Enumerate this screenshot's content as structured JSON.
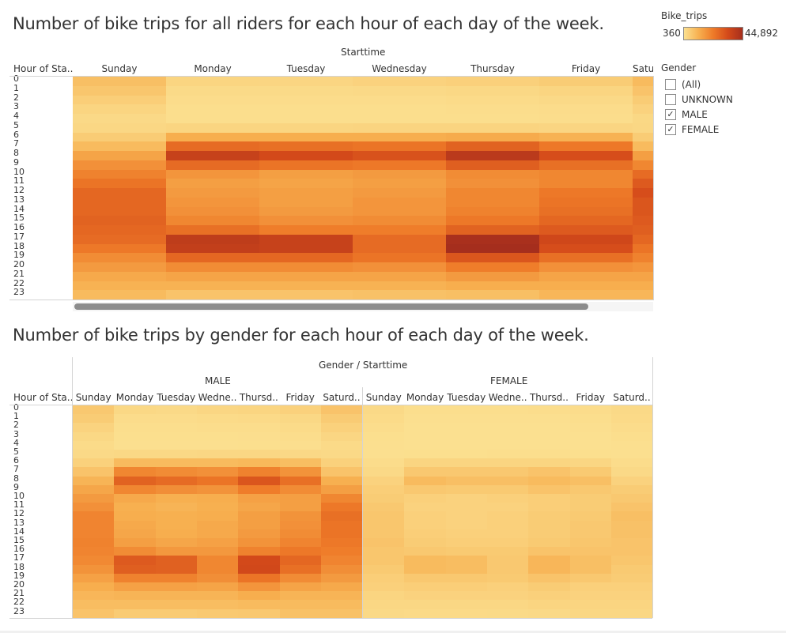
{
  "chart1": {
    "title": "Number of bike trips for all riders for each hour of each day of the week.",
    "column_header": "Starttime",
    "row_header": "Hour of Sta..",
    "day_labels": [
      "Sunday",
      "Monday",
      "Tuesday",
      "Wednesday",
      "Thursday",
      "Friday",
      "Satu"
    ]
  },
  "chart2": {
    "title": "Number of bike trips by gender for each hour of each day of the week.",
    "column_header": "Gender / Starttime",
    "row_header": "Hour of Sta..",
    "gender_labels": [
      "MALE",
      "FEMALE"
    ],
    "day_labels": [
      "Sunday",
      "Monday",
      "Tuesday",
      "Wedne..",
      "Thursd..",
      "Friday",
      "Saturd.."
    ]
  },
  "legend": {
    "title": "Bike_trips",
    "min_label": "360",
    "max_label": "44,892"
  },
  "filter": {
    "title": "Gender",
    "options": [
      {
        "label": "(All)",
        "checked": false
      },
      {
        "label": "UNKNOWN",
        "checked": false
      },
      {
        "label": "MALE",
        "checked": true
      },
      {
        "label": "FEMALE",
        "checked": true
      }
    ]
  },
  "hours": [
    "0",
    "1",
    "2",
    "3",
    "4",
    "5",
    "6",
    "7",
    "8",
    "9",
    "10",
    "11",
    "12",
    "13",
    "14",
    "15",
    "16",
    "17",
    "18",
    "19",
    "20",
    "21",
    "22",
    "23"
  ],
  "colors": {
    "scale_low": "#fbe090",
    "scale_mid": "#ee7a28",
    "scale_high": "#a52e1d"
  },
  "chart_data": [
    {
      "type": "heatmap",
      "title": "Number of bike trips for all riders for each hour of each day of the week.",
      "xlabel": "Starttime",
      "ylabel": "Hour of Sta..",
      "x": [
        "Sunday",
        "Monday",
        "Tuesday",
        "Wednesday",
        "Thursday",
        "Friday",
        "Saturday"
      ],
      "y": [
        "0",
        "1",
        "2",
        "3",
        "4",
        "5",
        "6",
        "7",
        "8",
        "9",
        "10",
        "11",
        "12",
        "13",
        "14",
        "15",
        "16",
        "17",
        "18",
        "19",
        "20",
        "21",
        "22",
        "23"
      ],
      "color_range": [
        360,
        44892
      ],
      "values": [
        [
          8000,
          3000,
          2800,
          3500,
          4000,
          5000,
          9000
        ],
        [
          6500,
          1800,
          1800,
          2000,
          2300,
          3000,
          7000
        ],
        [
          4500,
          1200,
          1200,
          1300,
          1500,
          2000,
          5000
        ],
        [
          3000,
          900,
          900,
          900,
          1000,
          1300,
          3500
        ],
        [
          2000,
          800,
          800,
          800,
          900,
          1000,
          2200
        ],
        [
          2500,
          3000,
          3000,
          3200,
          3200,
          2800,
          2500
        ],
        [
          5000,
          12000,
          12000,
          12000,
          12500,
          11000,
          5000
        ],
        [
          9000,
          26000,
          25000,
          24000,
          28000,
          23000,
          9000
        ],
        [
          14000,
          37000,
          34000,
          32000,
          40000,
          33000,
          15000
        ],
        [
          18000,
          26000,
          24000,
          23000,
          29000,
          25000,
          20000
        ],
        [
          21000,
          17000,
          15000,
          16000,
          19000,
          20000,
          26000
        ],
        [
          24000,
          15000,
          14000,
          15000,
          18000,
          20000,
          30000
        ],
        [
          27000,
          16000,
          15000,
          16000,
          20000,
          23000,
          33000
        ],
        [
          27000,
          17000,
          15000,
          17000,
          20000,
          24000,
          31000
        ],
        [
          27000,
          18000,
          16000,
          17000,
          21000,
          25000,
          31000
        ],
        [
          28000,
          20000,
          18000,
          19000,
          23000,
          27000,
          30000
        ],
        [
          27000,
          25000,
          22000,
          22000,
          28000,
          30000,
          29000
        ],
        [
          26000,
          39000,
          37000,
          26000,
          44000,
          35000,
          27000
        ],
        [
          23000,
          38000,
          37000,
          26000,
          44892,
          33000,
          24000
        ],
        [
          19000,
          27000,
          27000,
          24000,
          31000,
          25000,
          21000
        ],
        [
          16000,
          19000,
          19000,
          18000,
          22000,
          18000,
          17000
        ],
        [
          13000,
          14000,
          14000,
          14000,
          16000,
          14000,
          14000
        ],
        [
          11000,
          11000,
          11000,
          11000,
          12000,
          12000,
          12000
        ],
        [
          9000,
          7000,
          7000,
          7500,
          8000,
          10000,
          10000
        ]
      ]
    },
    {
      "type": "heatmap",
      "title": "Number of bike trips by gender for each hour of each day of the week.",
      "xlabel": "Gender / Starttime",
      "ylabel": "Hour of Sta..",
      "x_groups": [
        "MALE",
        "FEMALE"
      ],
      "x": [
        "Sunday",
        "Monday",
        "Tuesday",
        "Wednesday",
        "Thursday",
        "Friday",
        "Saturday"
      ],
      "y": [
        "0",
        "1",
        "2",
        "3",
        "4",
        "5",
        "6",
        "7",
        "8",
        "9",
        "10",
        "11",
        "12",
        "13",
        "14",
        "15",
        "16",
        "17",
        "18",
        "19",
        "20",
        "21",
        "22",
        "23"
      ],
      "color_range": [
        360,
        44892
      ],
      "series": [
        {
          "name": "MALE",
          "values": [
            [
              6000,
              2200,
              2000,
              2600,
              3000,
              3800,
              7000
            ],
            [
              5000,
              1300,
              1300,
              1500,
              1700,
              2200,
              5300
            ],
            [
              3400,
              900,
              900,
              1000,
              1100,
              1500,
              3800
            ],
            [
              2300,
              700,
              700,
              700,
              750,
              1000,
              2700
            ],
            [
              1500,
              600,
              600,
              600,
              700,
              750,
              1700
            ],
            [
              1900,
              2300,
              2300,
              2400,
              2400,
              2100,
              1900
            ],
            [
              3800,
              9000,
              9000,
              9000,
              9500,
              8300,
              3800
            ],
            [
              7000,
              20000,
              19000,
              18000,
              21000,
              17500,
              7000
            ],
            [
              10500,
              28000,
              26000,
              24000,
              31000,
              25000,
              11500
            ],
            [
              13500,
              20000,
              18500,
              17500,
              22000,
              19000,
              15000
            ],
            [
              16000,
              13000,
              11500,
              12000,
              14500,
              15000,
              20000
            ],
            [
              18000,
              11500,
              10500,
              11500,
              13500,
              15000,
              23000
            ],
            [
              20500,
              12000,
              11500,
              12000,
              15000,
              17500,
              25000
            ],
            [
              20500,
              13000,
              11500,
              13000,
              15000,
              18000,
              24000
            ],
            [
              20500,
              13500,
              12000,
              13000,
              16000,
              19000,
              24000
            ],
            [
              21000,
              15000,
              13500,
              14500,
              17500,
              20500,
              23000
            ],
            [
              20500,
              19000,
              16500,
              16500,
              21000,
              23000,
              22000
            ],
            [
              19500,
              30000,
              28500,
              20000,
              34000,
              27000,
              20500
            ],
            [
              17500,
              29000,
              28500,
              20000,
              34500,
              25000,
              18500
            ],
            [
              14500,
              21000,
              21000,
              18500,
              24000,
              19000,
              16000
            ],
            [
              12000,
              14500,
              14500,
              14000,
              17000,
              14000,
              13000
            ],
            [
              10000,
              10500,
              10500,
              10500,
              12000,
              10500,
              10500
            ],
            [
              8500,
              8500,
              8500,
              8500,
              9000,
              9000,
              9000
            ],
            [
              7000,
              5300,
              5300,
              5700,
              6000,
              7500,
              7500
            ]
          ]
        },
        {
          "name": "FEMALE",
          "values": [
            [
              2000,
              800,
              800,
              900,
              1000,
              1200,
              2000
            ],
            [
              1500,
              500,
              500,
              500,
              600,
              800,
              1700
            ],
            [
              1100,
              360,
              360,
              400,
              400,
              500,
              1200
            ],
            [
              700,
              360,
              360,
              360,
              360,
              400,
              800
            ],
            [
              500,
              360,
              360,
              360,
              360,
              360,
              500
            ],
            [
              600,
              700,
              700,
              800,
              800,
              700,
              600
            ],
            [
              1200,
              3000,
              3000,
              3000,
              3000,
              2700,
              1200
            ],
            [
              2000,
              6000,
              6000,
              6000,
              7000,
              5500,
              2000
            ],
            [
              3500,
              9000,
              8000,
              8000,
              9000,
              8000,
              3500
            ],
            [
              4500,
              6000,
              5500,
              5500,
              7000,
              6000,
              5000
            ],
            [
              5000,
              4000,
              3500,
              4000,
              4500,
              5000,
              6000
            ],
            [
              6000,
              3500,
              3500,
              3500,
              4500,
              5000,
              7000
            ],
            [
              6500,
              4000,
              3500,
              4000,
              5000,
              5500,
              8000
            ],
            [
              6500,
              4000,
              3500,
              4000,
              5000,
              6000,
              7500
            ],
            [
              6500,
              4500,
              4000,
              4000,
              5000,
              6000,
              7500
            ],
            [
              7000,
              5000,
              4500,
              4500,
              5500,
              6500,
              7000
            ],
            [
              6500,
              6000,
              5500,
              5500,
              7000,
              7000,
              7000
            ],
            [
              6500,
              9000,
              8500,
              6000,
              10000,
              8000,
              6500
            ],
            [
              5500,
              9000,
              8500,
              6000,
              10000,
              8000,
              5500
            ],
            [
              4500,
              6000,
              6000,
              5500,
              7000,
              6000,
              5000
            ],
            [
              4000,
              4500,
              4500,
              4000,
              5000,
              4000,
              4000
            ],
            [
              3000,
              3500,
              3500,
              3500,
              4000,
              3500,
              3500
            ],
            [
              2500,
              2500,
              2500,
              2500,
              3000,
              3000,
              3000
            ],
            [
              2000,
              1700,
              1700,
              1800,
              2000,
              2500,
              2500
            ]
          ]
        }
      ]
    }
  ]
}
